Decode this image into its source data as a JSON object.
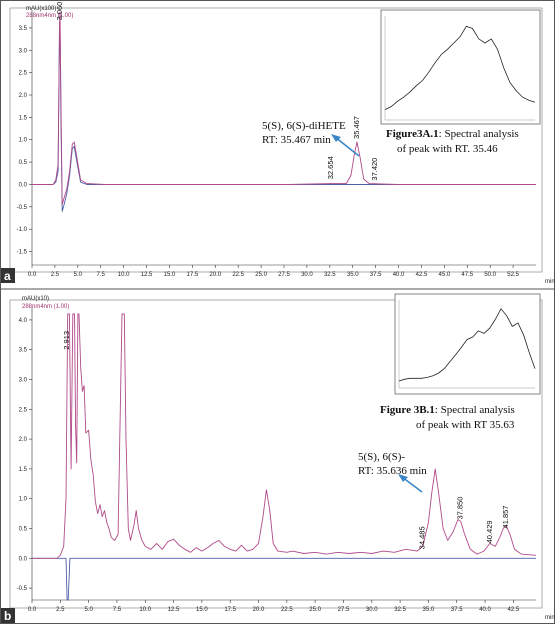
{
  "chart_data": [
    {
      "type": "line",
      "panel": "a",
      "ylabel": "mAU(x100)",
      "legend": "288nm4nm (1.00)",
      "xlabel": "min",
      "xlim": [
        0,
        55
      ],
      "ylim": [
        -1.8,
        3.9
      ],
      "x_ticks": [
        "0.0",
        "2.5",
        "5.0",
        "7.5",
        "10.0",
        "12.5",
        "15.0",
        "17.5",
        "20.0",
        "22.5",
        "25.0",
        "27.5",
        "30.0",
        "32.5",
        "35.0",
        "37.5",
        "40.0",
        "42.5",
        "45.0",
        "47.5",
        "50.0",
        "52.5"
      ],
      "y_ticks": [
        "-1.5",
        "-1.0",
        "-0.5",
        "0.0",
        "0.5",
        "1.0",
        "1.5",
        "2.0",
        "2.5",
        "3.0",
        "3.5"
      ],
      "peak_labels": [
        {
          "text": "3.060",
          "x": 3.06,
          "y": 3.6
        },
        {
          "text": "32.654",
          "x": 32.65,
          "y": 0.05
        },
        {
          "text": "35.467",
          "x": 35.47,
          "y": 0.95
        },
        {
          "text": "37.420",
          "x": 37.42,
          "y": 0.02
        }
      ],
      "series": [
        {
          "color": "#b04a8a",
          "points": [
            [
              0,
              0
            ],
            [
              2.3,
              0
            ],
            [
              2.6,
              0.1
            ],
            [
              2.85,
              0.45
            ],
            [
              3.0,
              3.6
            ],
            [
              3.06,
              3.85
            ],
            [
              3.15,
              2.0
            ],
            [
              3.3,
              -0.45
            ],
            [
              3.5,
              -0.3
            ],
            [
              3.8,
              -0.1
            ],
            [
              4.1,
              0.3
            ],
            [
              4.4,
              0.9
            ],
            [
              4.6,
              0.95
            ],
            [
              4.9,
              0.6
            ],
            [
              5.3,
              0.1
            ],
            [
              6,
              0.02
            ],
            [
              8,
              0
            ],
            [
              12,
              0
            ],
            [
              20,
              0
            ],
            [
              28,
              0
            ],
            [
              32.6,
              0.02
            ],
            [
              34.3,
              0.02
            ],
            [
              34.8,
              0.2
            ],
            [
              35.2,
              0.7
            ],
            [
              35.47,
              0.95
            ],
            [
              35.8,
              0.6
            ],
            [
              36.2,
              0.12
            ],
            [
              36.8,
              0.02
            ],
            [
              40,
              0
            ],
            [
              50,
              0
            ],
            [
              55,
              0
            ]
          ]
        },
        {
          "color": "#4d5fa8",
          "points": [
            [
              0,
              0
            ],
            [
              2.3,
              0
            ],
            [
              2.6,
              0.05
            ],
            [
              2.85,
              0.3
            ],
            [
              3.0,
              3.4
            ],
            [
              3.06,
              3.6
            ],
            [
              3.15,
              1.5
            ],
            [
              3.3,
              -0.6
            ],
            [
              3.5,
              -0.45
            ],
            [
              3.8,
              -0.2
            ],
            [
              4.1,
              0.2
            ],
            [
              4.4,
              0.8
            ],
            [
              4.6,
              0.85
            ],
            [
              4.9,
              0.5
            ],
            [
              5.3,
              0.05
            ],
            [
              6,
              0
            ],
            [
              8,
              0
            ],
            [
              55,
              0
            ]
          ]
        }
      ],
      "annotation": {
        "lines": [
          "5(S), 6(S)-diHETE",
          "RT: 35.467 min"
        ]
      },
      "inset": {
        "caption_bold": "Figure3A.1",
        "caption_rest": ": Spectral analysis",
        "caption_line2": "of peak with RT. 35.46",
        "y": [
          0.1,
          0.13,
          0.18,
          0.22,
          0.27,
          0.33,
          0.38,
          0.46,
          0.55,
          0.63,
          0.68,
          0.74,
          0.8,
          0.9,
          0.88,
          0.78,
          0.74,
          0.78,
          0.68,
          0.5,
          0.36,
          0.28,
          0.22,
          0.19,
          0.17
        ]
      }
    },
    {
      "type": "line",
      "panel": "b",
      "ylabel": "mAU(x10)",
      "legend": "288nm4nm (1.00)",
      "xlabel": "min",
      "xlim": [
        0,
        44.5
      ],
      "ylim": [
        -0.7,
        4.2
      ],
      "x_ticks": [
        "0.0",
        "2.5",
        "5.0",
        "7.5",
        "10.0",
        "12.5",
        "15.0",
        "17.5",
        "20.0",
        "22.5",
        "25.0",
        "27.5",
        "30.0",
        "32.5",
        "35.0",
        "37.5",
        "40.0",
        "42.5"
      ],
      "y_ticks": [
        "-0.5",
        "0.0",
        "0.5",
        "1.0",
        "1.5",
        "2.0",
        "2.5",
        "3.0",
        "3.5",
        "4.0"
      ],
      "peak_labels": [
        {
          "text": "2.913",
          "x": 3.1,
          "y": 3.45
        },
        {
          "text": "34.485",
          "x": 34.49,
          "y": 0.1
        },
        {
          "text": "37.850",
          "x": 37.85,
          "y": 0.6
        },
        {
          "text": "40.429",
          "x": 40.43,
          "y": 0.2
        },
        {
          "text": "41.857",
          "x": 41.86,
          "y": 0.45
        }
      ],
      "series": [
        {
          "color": "#b04a8a",
          "points": [
            [
              0,
              0
            ],
            [
              2.2,
              0
            ],
            [
              2.5,
              0.05
            ],
            [
              2.8,
              0.2
            ],
            [
              3.0,
              1.0
            ],
            [
              3.15,
              4.1
            ],
            [
              3.3,
              4.1
            ],
            [
              3.45,
              1.5
            ],
            [
              3.6,
              4.1
            ],
            [
              3.75,
              4.1
            ],
            [
              3.85,
              2.2
            ],
            [
              3.95,
              1.6
            ],
            [
              4.05,
              4.1
            ],
            [
              4.15,
              4.1
            ],
            [
              4.3,
              3.2
            ],
            [
              4.45,
              2.8
            ],
            [
              4.6,
              2.9
            ],
            [
              4.75,
              2.1
            ],
            [
              5.0,
              2.15
            ],
            [
              5.2,
              1.65
            ],
            [
              5.4,
              1.4
            ],
            [
              5.6,
              0.95
            ],
            [
              5.8,
              0.75
            ],
            [
              6.0,
              0.9
            ],
            [
              6.2,
              0.7
            ],
            [
              6.4,
              0.8
            ],
            [
              6.6,
              0.6
            ],
            [
              6.8,
              0.5
            ],
            [
              7.0,
              0.35
            ],
            [
              7.3,
              0.3
            ],
            [
              7.6,
              0.4
            ],
            [
              7.8,
              2.5
            ],
            [
              7.95,
              4.1
            ],
            [
              8.15,
              4.1
            ],
            [
              8.3,
              2.0
            ],
            [
              8.5,
              0.5
            ],
            [
              8.7,
              0.3
            ],
            [
              9.0,
              0.55
            ],
            [
              9.2,
              0.8
            ],
            [
              9.4,
              0.5
            ],
            [
              9.7,
              0.3
            ],
            [
              10.0,
              0.2
            ],
            [
              10.5,
              0.15
            ],
            [
              11,
              0.25
            ],
            [
              11.5,
              0.15
            ],
            [
              12,
              0.28
            ],
            [
              12.5,
              0.32
            ],
            [
              13,
              0.22
            ],
            [
              13.5,
              0.15
            ],
            [
              14,
              0.1
            ],
            [
              14.5,
              0.18
            ],
            [
              15,
              0.12
            ],
            [
              15.5,
              0.18
            ],
            [
              16,
              0.25
            ],
            [
              16.5,
              0.3
            ],
            [
              17,
              0.2
            ],
            [
              17.5,
              0.15
            ],
            [
              18,
              0.12
            ],
            [
              18.5,
              0.22
            ],
            [
              19,
              0.12
            ],
            [
              19.5,
              0.15
            ],
            [
              20,
              0.25
            ],
            [
              20.4,
              0.7
            ],
            [
              20.7,
              1.15
            ],
            [
              21.0,
              0.8
            ],
            [
              21.3,
              0.25
            ],
            [
              21.7,
              0.12
            ],
            [
              22.5,
              0.1
            ],
            [
              23,
              0.12
            ],
            [
              24,
              0.08
            ],
            [
              25,
              0.1
            ],
            [
              26,
              0.07
            ],
            [
              27,
              0.1
            ],
            [
              28,
              0.08
            ],
            [
              29,
              0.1
            ],
            [
              30,
              0.08
            ],
            [
              31,
              0.12
            ],
            [
              32,
              0.1
            ],
            [
              33,
              0.15
            ],
            [
              34,
              0.12
            ],
            [
              34.5,
              0.2
            ],
            [
              35.0,
              0.6
            ],
            [
              35.3,
              1.1
            ],
            [
              35.6,
              1.5
            ],
            [
              35.9,
              1.1
            ],
            [
              36.3,
              0.5
            ],
            [
              36.7,
              0.3
            ],
            [
              37.2,
              0.45
            ],
            [
              37.6,
              0.65
            ],
            [
              37.85,
              0.62
            ],
            [
              38.2,
              0.4
            ],
            [
              38.7,
              0.15
            ],
            [
              39.3,
              0.07
            ],
            [
              39.9,
              0.12
            ],
            [
              40.43,
              0.25
            ],
            [
              40.9,
              0.2
            ],
            [
              41.3,
              0.35
            ],
            [
              41.6,
              0.5
            ],
            [
              41.86,
              0.55
            ],
            [
              42.2,
              0.4
            ],
            [
              42.6,
              0.15
            ],
            [
              43.2,
              0.07
            ],
            [
              44.5,
              0.05
            ]
          ]
        },
        {
          "color": "#4d5fa8",
          "points": [
            [
              0,
              0
            ],
            [
              3.0,
              0
            ],
            [
              3.1,
              -0.7
            ],
            [
              3.2,
              -0.7
            ],
            [
              3.35,
              0
            ],
            [
              44.5,
              0
            ]
          ]
        }
      ],
      "annotation": {
        "lines": [
          "5(S), 6(S)-",
          "RT: 35.636 min"
        ]
      },
      "inset": {
        "caption_bold": "Figure 3B.1",
        "caption_rest": ": Spectral analysis",
        "caption_line2": "of peak with RT 35.63",
        "y": [
          0.08,
          0.1,
          0.11,
          0.11,
          0.11,
          0.12,
          0.14,
          0.17,
          0.22,
          0.3,
          0.38,
          0.46,
          0.55,
          0.58,
          0.65,
          0.62,
          0.68,
          0.78,
          0.9,
          0.82,
          0.7,
          0.74,
          0.6,
          0.4,
          0.22
        ]
      }
    }
  ]
}
